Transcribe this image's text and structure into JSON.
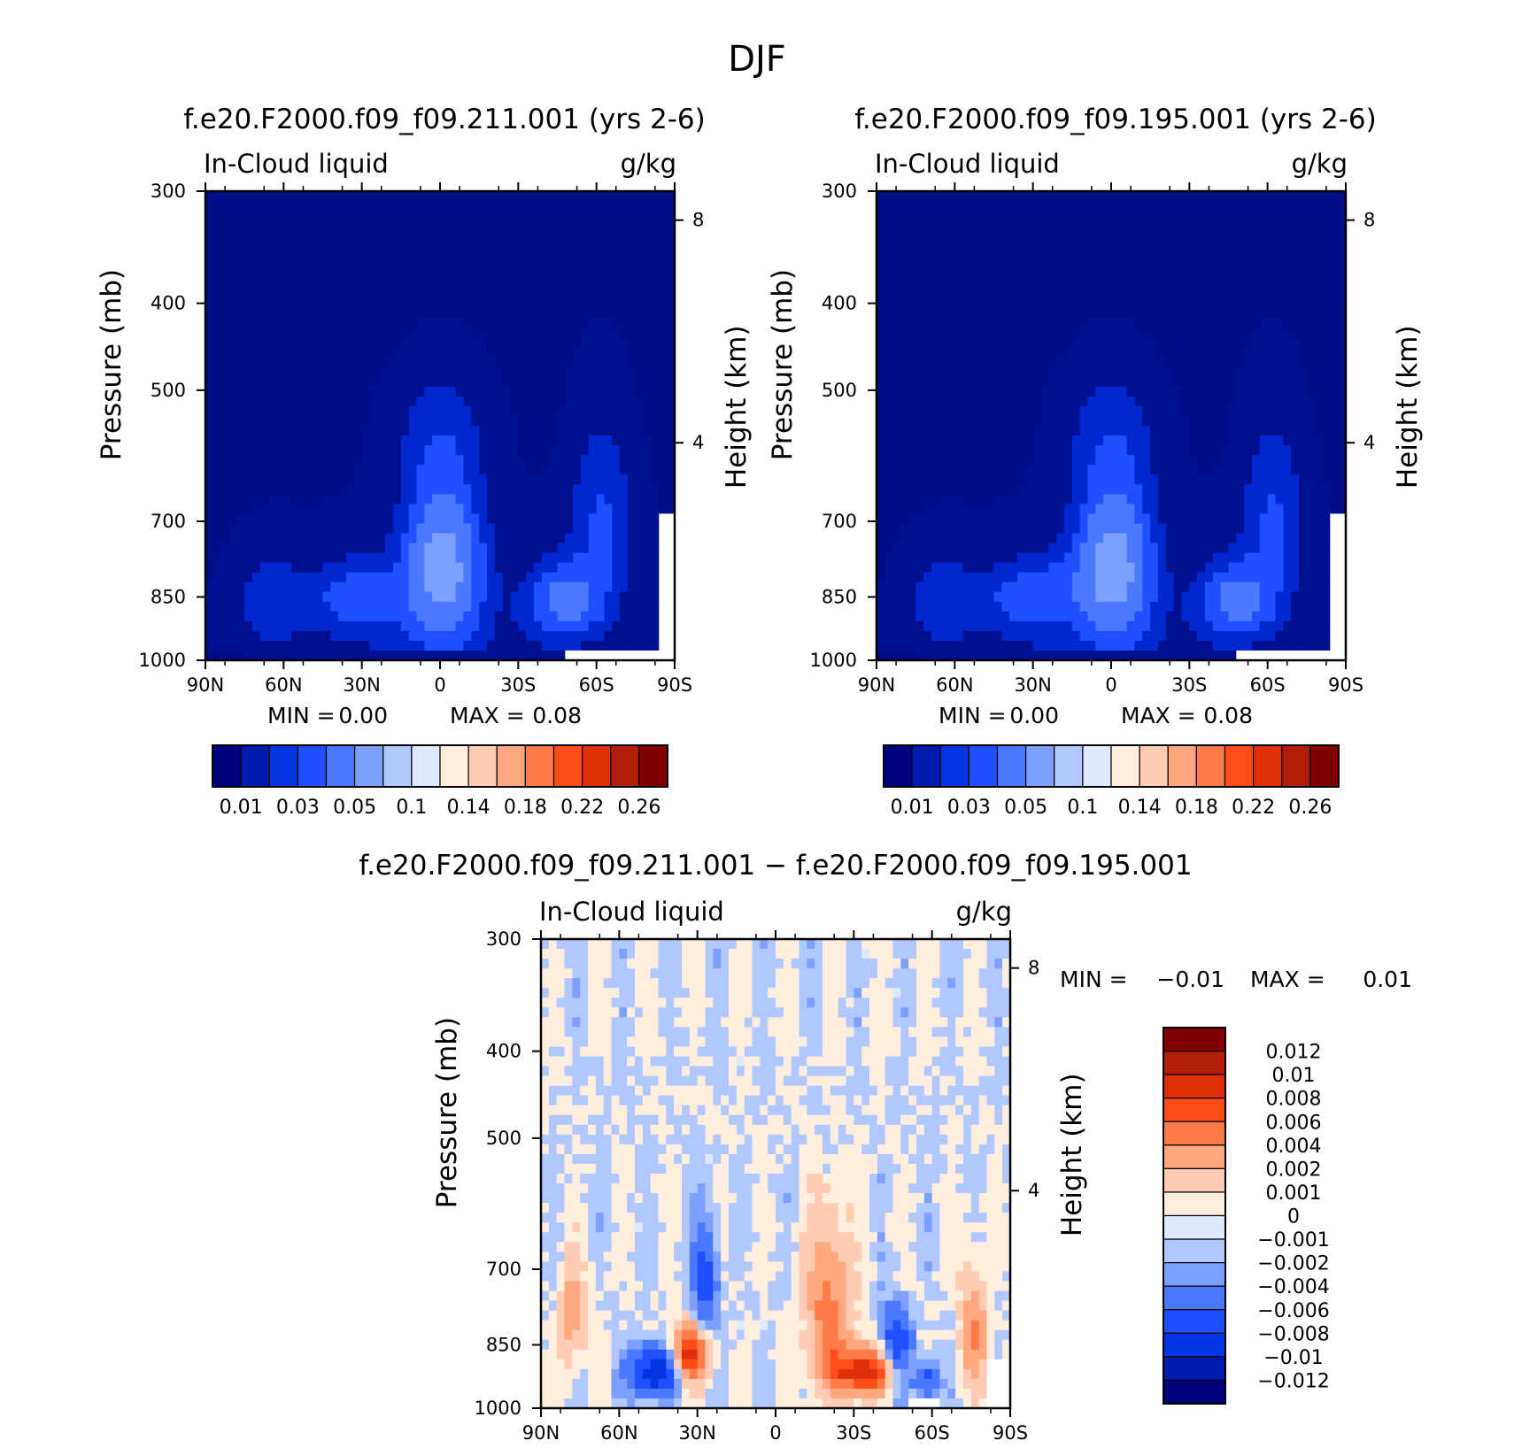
{
  "figure": {
    "title": "DJF",
    "colors": {
      "background": "#ffffff",
      "axis": "#000000"
    }
  },
  "chart_data": [
    {
      "type": "heatmap",
      "panel": "top-left",
      "title": "f.e20.F2000.f09_f09.211.001 (yrs 2-6)",
      "left_label": "In-Cloud liquid",
      "right_label": "g/kg",
      "xlabel": "",
      "ylabel": "Pressure (mb)",
      "ylabel_right": "Height (km)",
      "x_ticks": [
        "90N",
        "60N",
        "30N",
        "0",
        "30S",
        "60S",
        "90S"
      ],
      "y_ticks": [
        "300",
        "400",
        "500",
        "700",
        "850",
        "1000"
      ],
      "y_right_ticks": [
        "8",
        "4"
      ],
      "min_label": "MIN =",
      "min_value": "0.00",
      "max_label": "MAX =",
      "max_value": "0.08",
      "colorbar": {
        "orientation": "horizontal",
        "labels": [
          "0.01",
          "0.03",
          "0.05",
          "0.1",
          "0.14",
          "0.18",
          "0.22",
          "0.26"
        ],
        "colors": [
          "#00007f",
          "#001bb0",
          "#0037e0",
          "#1e50ff",
          "#4a78ff",
          "#7d9fff",
          "#b0c8ff",
          "#dce9ff",
          "#ffeedd",
          "#ffccb3",
          "#ffa880",
          "#ff7b47",
          "#ff4d1a",
          "#e0300a",
          "#b01d08",
          "#800000"
        ]
      }
    },
    {
      "type": "heatmap",
      "panel": "top-right",
      "title": "f.e20.F2000.f09_f09.195.001 (yrs 2-6)",
      "left_label": "In-Cloud liquid",
      "right_label": "g/kg",
      "xlabel": "",
      "ylabel": "Pressure (mb)",
      "ylabel_right": "Height (km)",
      "x_ticks": [
        "90N",
        "60N",
        "30N",
        "0",
        "30S",
        "60S",
        "90S"
      ],
      "y_ticks": [
        "300",
        "400",
        "500",
        "700",
        "850",
        "1000"
      ],
      "y_right_ticks": [
        "8",
        "4"
      ],
      "min_label": "MIN =",
      "min_value": "0.00",
      "max_label": "MAX =",
      "max_value": "0.08",
      "colorbar": {
        "orientation": "horizontal",
        "labels": [
          "0.01",
          "0.03",
          "0.05",
          "0.1",
          "0.14",
          "0.18",
          "0.22",
          "0.26"
        ],
        "colors": [
          "#00007f",
          "#001bb0",
          "#0037e0",
          "#1e50ff",
          "#4a78ff",
          "#7d9fff",
          "#b0c8ff",
          "#dce9ff",
          "#ffeedd",
          "#ffccb3",
          "#ffa880",
          "#ff7b47",
          "#ff4d1a",
          "#e0300a",
          "#b01d08",
          "#800000"
        ]
      }
    },
    {
      "type": "heatmap",
      "panel": "bottom",
      "title": "f.e20.F2000.f09_f09.211.001 − f.e20.F2000.f09_f09.195.001",
      "left_label": "In-Cloud liquid",
      "right_label": "g/kg",
      "xlabel": "",
      "ylabel": "Pressure (mb)",
      "ylabel_right": "Height (km)",
      "x_ticks": [
        "90N",
        "60N",
        "30N",
        "0",
        "30S",
        "60S",
        "90S"
      ],
      "y_ticks": [
        "300",
        "400",
        "500",
        "700",
        "850",
        "1000"
      ],
      "y_right_ticks": [
        "8",
        "4"
      ],
      "min_label": "MIN =",
      "min_value": "−0.01",
      "max_label": "MAX =",
      "max_value": "0.01",
      "colorbar": {
        "orientation": "vertical",
        "labels": [
          "0.012",
          "0.01",
          "0.008",
          "0.006",
          "0.004",
          "0.002",
          "0.001",
          "0",
          "−0.001",
          "−0.002",
          "−0.004",
          "−0.006",
          "−0.008",
          "−0.01",
          "−0.012"
        ],
        "colors": [
          "#800000",
          "#b01d08",
          "#e0300a",
          "#ff4d1a",
          "#ff7b47",
          "#ffa880",
          "#ffccb3",
          "#ffeedd",
          "#dce9ff",
          "#b0c8ff",
          "#7d9fff",
          "#4a78ff",
          "#1e50ff",
          "#0037e0",
          "#001bb0",
          "#00007f"
        ]
      }
    }
  ]
}
